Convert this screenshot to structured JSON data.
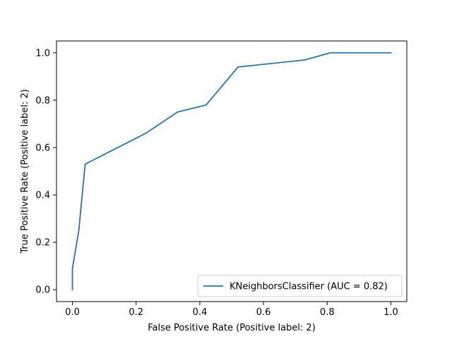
{
  "chart_data": {
    "type": "line",
    "title": "",
    "xlabel": "False Positive Rate (Positive label: 2)",
    "ylabel": "True Positive Rate (Positive label: 2)",
    "xlim": [
      -0.05,
      1.05
    ],
    "ylim": [
      -0.05,
      1.05
    ],
    "xticks": [
      0.0,
      0.2,
      0.4,
      0.6,
      0.8,
      1.0
    ],
    "yticks": [
      0.0,
      0.2,
      0.4,
      0.6,
      0.8,
      1.0
    ],
    "xtick_labels": [
      "0.0",
      "0.2",
      "0.4",
      "0.6",
      "0.8",
      "1.0"
    ],
    "ytick_labels": [
      "0.0",
      "0.2",
      "0.4",
      "0.6",
      "0.8",
      "1.0"
    ],
    "grid": false,
    "legend_position": "lower-right",
    "series": [
      {
        "name": "KNeighborsClassifier (AUC = 0.82)",
        "color": "#1f77b4",
        "x": [
          0.0,
          0.0,
          0.02,
          0.04,
          0.23,
          0.33,
          0.42,
          0.52,
          0.73,
          0.81,
          1.0
        ],
        "y": [
          0.0,
          0.09,
          0.25,
          0.53,
          0.66,
          0.75,
          0.78,
          0.94,
          0.97,
          1.0,
          1.0
        ]
      }
    ]
  }
}
